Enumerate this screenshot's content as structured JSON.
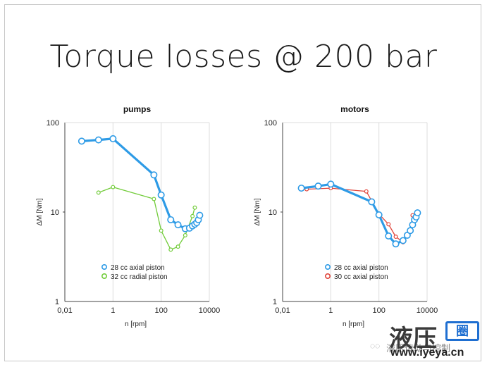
{
  "title": "Torque losses @ 200 bar",
  "watermark": {
    "big": "液压",
    "box": "圈",
    "url": "www.iyeya.cn",
    "wechat_text": "液压传动与控制"
  },
  "chart_data": [
    {
      "type": "line",
      "title": "pumps",
      "xlabel": "n [rpm]",
      "ylabel": "ΔM [Nm]",
      "xscale": "log",
      "yscale": "log",
      "xlim": [
        0.01,
        10000
      ],
      "ylim": [
        1,
        100
      ],
      "xticks": [
        "0,01",
        "1",
        "100",
        "10000"
      ],
      "yticks": [
        "1",
        "10",
        "100"
      ],
      "grid": "vertical",
      "legend": "bottom-center",
      "series": [
        {
          "name": "28 cc axial piston",
          "color": "#2e9be6",
          "x": [
            0.05,
            0.25,
            1,
            50,
            100,
            250,
            500,
            1000,
            1500,
            2000,
            2500,
            3000,
            3500,
            4000
          ],
          "y": [
            62,
            64,
            66,
            26,
            15.5,
            8.2,
            7.2,
            6.5,
            6.6,
            7.0,
            7.3,
            7.6,
            8.2,
            9.2
          ]
        },
        {
          "name": "32 cc radial piston",
          "color": "#72cc3a",
          "x": [
            0.25,
            1,
            50,
            100,
            250,
            500,
            1000,
            2000,
            2500
          ],
          "y": [
            16.5,
            19,
            14,
            6.2,
            3.8,
            4.1,
            5.5,
            9.0,
            11.2
          ]
        }
      ]
    },
    {
      "type": "line",
      "title": "motors",
      "xlabel": "n [rpm]",
      "ylabel": "ΔM [Nm]",
      "xscale": "log",
      "yscale": "log",
      "xlim": [
        0.01,
        10000
      ],
      "ylim": [
        1,
        100
      ],
      "xticks": [
        "0,01",
        "1",
        "100",
        "10000"
      ],
      "yticks": [
        "1",
        "10",
        "100"
      ],
      "grid": "vertical",
      "legend": "bottom-center",
      "series": [
        {
          "name": "28 cc axial piston",
          "color": "#2e9be6",
          "x": [
            0.06,
            0.3,
            1,
            50,
            100,
            250,
            500,
            1000,
            1500,
            2000,
            2500,
            3000,
            3500,
            4000
          ],
          "y": [
            18.5,
            19.5,
            20.5,
            13,
            9.3,
            5.4,
            4.4,
            4.8,
            5.5,
            6.2,
            7.2,
            8.2,
            8.8,
            9.8
          ]
        },
        {
          "name": "30 cc axial piston",
          "color": "#e0443a",
          "x": [
            0.1,
            1,
            30,
            100,
            250,
            500,
            1000,
            2000,
            2500
          ],
          "y": [
            18,
            18.5,
            17,
            9.5,
            7.3,
            5.3,
            4.6,
            6.0,
            9.2
          ]
        }
      ]
    }
  ]
}
